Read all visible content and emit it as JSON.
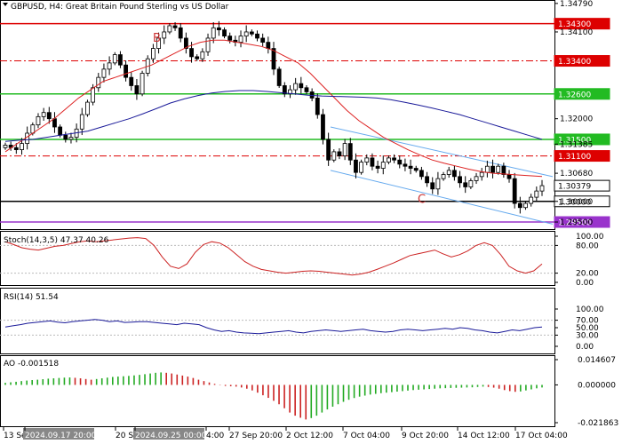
{
  "header": {
    "title": "GBPUSD, H4:  Great Britain Pound Sterling  vs US Dollar"
  },
  "colors": {
    "red": "#dd0000",
    "green": "#22bb22",
    "purple": "#9933cc",
    "blue_ma": "#1a1a99",
    "red_ma": "#dd2222",
    "channel": "#66aaee",
    "stoch_main": "#cc2222",
    "rsi": "#1a1a99",
    "ao_up": "#22aa22",
    "ao_down": "#cc2222",
    "tag_label": "#cc3333"
  },
  "chart_data": [
    {
      "type": "candlestick",
      "symbol": "GBPUSD",
      "timeframe": "H4",
      "ylim": [
        1.2935,
        1.3483
      ],
      "y_ticks": [
        "1.34790",
        "1.34100",
        "1.32000",
        "1.31385",
        "1.30680",
        "1.30379",
        "1.30000",
        "1.29500"
      ],
      "price_tag": "1.30379",
      "levels": [
        {
          "value": 1.343,
          "label": "1.34300",
          "style": "solid",
          "color": "red"
        },
        {
          "value": 1.334,
          "label": "1.33400",
          "style": "dashdot",
          "color": "red"
        },
        {
          "value": 1.326,
          "label": "1.32600",
          "style": "solid",
          "color": "green"
        },
        {
          "value": 1.315,
          "label": "1.31500",
          "style": "solid",
          "color": "green"
        },
        {
          "value": 1.311,
          "label": "1.31100",
          "style": "dashdot",
          "color": "red"
        },
        {
          "value": 1.3,
          "label": "1.30000",
          "style": "solid",
          "color": "black"
        },
        {
          "value": 1.295,
          "label": "1.29500",
          "style": "solid",
          "color": "purple"
        }
      ],
      "close_series": [
        1.3136,
        1.313,
        1.3125,
        1.314,
        1.3165,
        1.3185,
        1.3205,
        1.3215,
        1.32,
        1.318,
        1.316,
        1.315,
        1.3155,
        1.3175,
        1.321,
        1.324,
        1.3275,
        1.33,
        1.332,
        1.3335,
        1.3355,
        1.333,
        1.33,
        1.328,
        1.326,
        1.331,
        1.3345,
        1.337,
        1.3395,
        1.341,
        1.3425,
        1.342,
        1.3395,
        1.337,
        1.335,
        1.3345,
        1.3362,
        1.3395,
        1.342,
        1.3415,
        1.34,
        1.339,
        1.3385,
        1.34,
        1.341,
        1.3405,
        1.3395,
        1.3385,
        1.337,
        1.332,
        1.328,
        1.326,
        1.327,
        1.3285,
        1.3275,
        1.3265,
        1.325,
        1.321,
        1.315,
        1.31,
        1.312,
        1.311,
        1.314,
        1.31,
        1.307,
        1.3095,
        1.3105,
        1.3085,
        1.308,
        1.3095,
        1.3105,
        1.31,
        1.309,
        1.3085,
        1.308,
        1.3075,
        1.306,
        1.3045,
        1.303,
        1.3055,
        1.3065,
        1.3075,
        1.306,
        1.3045,
        1.3035,
        1.305,
        1.306,
        1.307,
        1.3085,
        1.307,
        1.3085,
        1.3065,
        1.3055,
        1.2995,
        1.2985,
        1.2995,
        1.301,
        1.3025,
        1.3038
      ],
      "moving_averages": [
        {
          "color": "red_ma",
          "values": [
            1.312,
            1.314,
            1.316,
            1.318,
            1.32,
            1.3225,
            1.325,
            1.327,
            1.329,
            1.33,
            1.331,
            1.332,
            1.333,
            1.3345,
            1.336,
            1.3375,
            1.3385,
            1.339,
            1.339,
            1.3385,
            1.338,
            1.3375,
            1.3365,
            1.335,
            1.3335,
            1.331,
            1.328,
            1.325,
            1.322,
            1.3195,
            1.3175,
            1.3155,
            1.314,
            1.3125,
            1.3112,
            1.31,
            1.3092,
            1.3085,
            1.3078,
            1.3072,
            1.3068,
            1.3066,
            1.3064,
            1.3062,
            1.306
          ]
        },
        {
          "color": "blue_ma",
          "values": [
            1.3145,
            1.3148,
            1.315,
            1.3155,
            1.316,
            1.3165,
            1.317,
            1.318,
            1.319,
            1.32,
            1.3212,
            1.3225,
            1.3238,
            1.3248,
            1.3256,
            1.3262,
            1.3266,
            1.3268,
            1.3268,
            1.3266,
            1.3263,
            1.326,
            1.3257,
            1.3255,
            1.3254,
            1.3253,
            1.3252,
            1.325,
            1.3246,
            1.324,
            1.3233,
            1.3226,
            1.3218,
            1.321,
            1.32,
            1.319,
            1.318,
            1.317,
            1.316,
            1.315
          ]
        }
      ],
      "annotations": [
        {
          "text": "B",
          "x": "2024.09.25 00:00"
        },
        {
          "text": "C",
          "x": "9 Oct 20:00"
        }
      ]
    },
    {
      "type": "line",
      "title": "Stoch(14,3,5) 47.37 40.26",
      "y_ticks": [
        "100.00",
        "80.00",
        "20.00",
        "0.00"
      ],
      "ylim": [
        0,
        100
      ],
      "values": [
        88,
        82,
        75,
        72,
        70,
        74,
        78,
        80,
        84,
        88,
        90,
        88,
        90,
        92,
        94,
        96,
        97,
        95,
        80,
        55,
        35,
        30,
        40,
        65,
        82,
        88,
        85,
        75,
        60,
        45,
        35,
        28,
        25,
        22,
        20,
        22,
        24,
        25,
        24,
        22,
        20,
        18,
        16,
        18,
        22,
        28,
        35,
        42,
        50,
        58,
        62,
        66,
        70,
        62,
        55,
        60,
        68,
        80,
        86,
        80,
        60,
        35,
        25,
        20,
        25,
        40
      ]
    },
    {
      "type": "line",
      "title": "RSI(14) 51.54",
      "y_ticks": [
        "100.00",
        "70.00",
        "50.00",
        "30.00",
        "0.00"
      ],
      "ylim": [
        0,
        100
      ],
      "values": [
        52,
        55,
        58,
        62,
        64,
        66,
        68,
        65,
        63,
        66,
        68,
        70,
        72,
        70,
        66,
        68,
        64,
        65,
        66,
        66,
        64,
        62,
        60,
        58,
        62,
        60,
        58,
        50,
        44,
        40,
        42,
        38,
        36,
        35,
        34,
        36,
        38,
        40,
        42,
        38,
        36,
        40,
        42,
        44,
        42,
        40,
        42,
        44,
        46,
        42,
        40,
        38,
        40,
        44,
        46,
        44,
        42,
        44,
        46,
        48,
        46,
        50,
        48,
        44,
        42,
        38,
        36,
        40,
        44,
        42,
        46,
        50,
        52
      ]
    },
    {
      "type": "bar",
      "title": "AO -0.001518",
      "y_ticks": [
        "0.014607",
        "0.000000",
        "-0.021863"
      ],
      "ylim": [
        -0.021863,
        0.014607
      ],
      "values": [
        0.0012,
        0.0015,
        0.0018,
        0.0022,
        0.0025,
        0.0028,
        0.003,
        0.0033,
        0.0036,
        0.0038,
        0.004,
        0.0042,
        0.0043,
        0.0041,
        0.0038,
        0.0034,
        0.003,
        0.0034,
        0.0038,
        0.0042,
        0.0046,
        0.0048,
        0.005,
        0.0052,
        0.0055,
        0.0058,
        0.0062,
        0.0066,
        0.007,
        0.0072,
        0.007,
        0.0066,
        0.006,
        0.0054,
        0.0048,
        0.004,
        0.003,
        0.0022,
        0.0014,
        0.0006,
        -0.0002,
        -0.0006,
        -0.0008,
        -0.001,
        -0.0015,
        -0.0022,
        -0.0032,
        -0.0045,
        -0.006,
        -0.0075,
        -0.0092,
        -0.0112,
        -0.0135,
        -0.016,
        -0.0178,
        -0.019,
        -0.02,
        -0.0192,
        -0.0178,
        -0.016,
        -0.0142,
        -0.0126,
        -0.0112,
        -0.0098,
        -0.0086,
        -0.0076,
        -0.0068,
        -0.0062,
        -0.0056,
        -0.0052,
        -0.0048,
        -0.0045,
        -0.0042,
        -0.0039,
        -0.0036,
        -0.0033,
        -0.003,
        -0.0028,
        -0.0026,
        -0.0024,
        -0.0022,
        -0.002,
        -0.0019,
        -0.0018,
        -0.0017,
        -0.0016,
        -0.0015,
        -0.0014,
        -0.0012,
        -0.001,
        -0.0012,
        -0.0016,
        -0.0022,
        -0.003,
        -0.0036,
        -0.004,
        -0.0038,
        -0.0032,
        -0.0026,
        -0.002,
        -0.0015
      ]
    }
  ],
  "x_axis": {
    "labels": [
      "13 Sep 2",
      "2024.09.17 20:00",
      "20 Sep",
      "2024.09.25 00:00",
      "4:00",
      "27 Sep 20:00",
      "2 Oct 12:00",
      "7 Oct 04:00",
      "9 Oct 20:00",
      "14 Oct 12:00",
      "17 Oct 04:00"
    ]
  }
}
